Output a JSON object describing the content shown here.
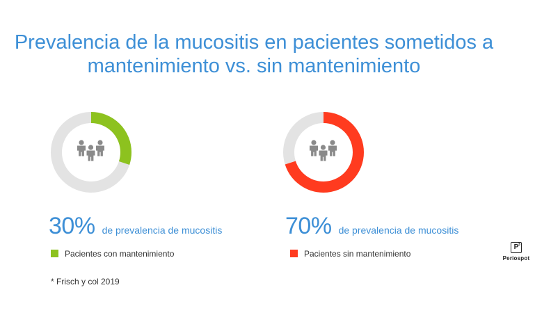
{
  "title_lines": [
    "Prevalencia de la mucositis en pacientes sometidos a",
    "mantenimiento vs. sin mantenimiento"
  ],
  "chart_data": [
    {
      "type": "pie",
      "value_label": "30%",
      "values": [
        30,
        70
      ],
      "description": "de prevalencia de mucositis",
      "legend_label": "Pacientes con mantenimiento",
      "color": "#8dc21f",
      "track_color": "#e3e3e3"
    },
    {
      "type": "pie",
      "value_label": "70%",
      "values": [
        70,
        30
      ],
      "description": "de prevalencia de mucositis",
      "legend_label": "Pacientes sin mantenimiento",
      "color": "#ff3b1f",
      "track_color": "#e3e3e3"
    }
  ],
  "icon": "people-group-icon",
  "icon_color": "#8a8a8a",
  "text_color": "#3d8fd6",
  "source": "* Frisch y col 2019",
  "logo": {
    "mark": "P",
    "superscript": "3",
    "text": "Periospot"
  }
}
